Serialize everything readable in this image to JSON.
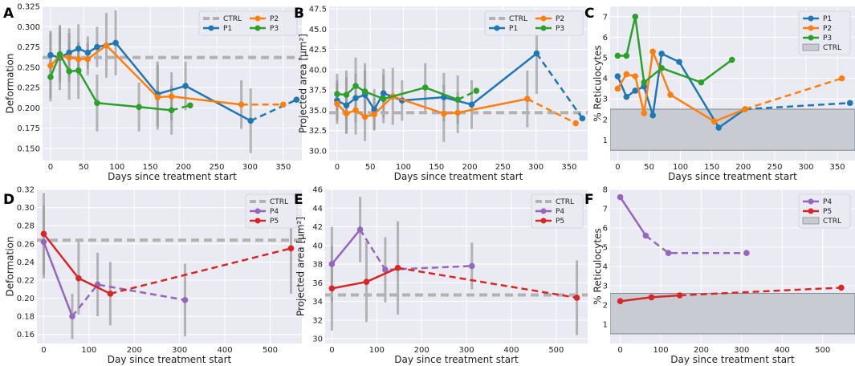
{
  "chart_data": [
    {
      "id": "A",
      "type": "line",
      "panel_label": "A",
      "xlabel": "Days since treatment start",
      "ylabel": "Deformation",
      "xlim": [
        -12,
        378
      ],
      "ylim": [
        0.135,
        0.325
      ],
      "xticks": [
        0,
        50,
        100,
        150,
        200,
        250,
        300,
        350
      ],
      "yticks": [
        0.15,
        0.175,
        0.2,
        0.225,
        0.25,
        0.275,
        0.3,
        0.325
      ],
      "ytick_labels": [
        "0.150",
        "0.175",
        "0.200",
        "0.225",
        "0.250",
        "0.275",
        "0.300",
        "0.325"
      ],
      "ctrl": 0.262,
      "legend": {
        "cols": 2,
        "items": [
          {
            "label": "CTRL",
            "kind": "ctrl"
          },
          {
            "label": "P2",
            "series": 1
          },
          {
            "label": "P1",
            "series": 0
          },
          {
            "label": "P3",
            "series": 2
          }
        ]
      },
      "series": [
        {
          "name": "P1",
          "color": "#1f77b4",
          "x": [
            0,
            14,
            28,
            42,
            56,
            70,
            98,
            161,
            203,
            301
          ],
          "y": [
            0.265,
            0.262,
            0.268,
            0.273,
            0.268,
            0.275,
            0.28,
            0.217,
            0.227,
            0.184
          ],
          "err": [
            0.03,
            0.04,
            0.03,
            0.03,
            0.02,
            0.025,
            0.04,
            0.04,
            0.03,
            0.04
          ],
          "dashed": {
            "x": [
              301,
              370
            ],
            "y": [
              0.184,
              0.21
            ]
          }
        },
        {
          "name": "P2",
          "color": "#ff7f0e",
          "x": [
            0,
            14,
            28,
            42,
            56,
            84,
            161,
            182,
            287
          ],
          "y": [
            0.252,
            0.264,
            0.262,
            0.26,
            0.26,
            0.277,
            0.213,
            0.214,
            0.204
          ],
          "err": [
            0.04,
            0.03,
            0.03,
            0.02,
            0.02,
            0.04,
            0.04,
            0.03,
            0.03
          ],
          "dashed": {
            "x": [
              287,
              350
            ],
            "y": [
              0.204,
              0.204
            ]
          }
        },
        {
          "name": "P3",
          "color": "#2ca02c",
          "x": [
            0,
            14,
            28,
            42,
            70,
            133,
            182
          ],
          "y": [
            0.238,
            0.266,
            0.245,
            0.246,
            0.206,
            0.201,
            0.197
          ],
          "err": [
            0.03,
            0.035,
            0.035,
            0.035,
            0.035,
            0.03,
            0.03
          ],
          "dashed": {
            "x": [
              182,
              210
            ],
            "y": [
              0.197,
              0.203
            ]
          }
        }
      ]
    },
    {
      "id": "B",
      "type": "line",
      "panel_label": "B",
      "xlabel": "Days since treatment start",
      "ylabel": "Projected area [μm²]",
      "xlim": [
        -12,
        378
      ],
      "ylim": [
        28.8,
        47.8
      ],
      "xticks": [
        0,
        50,
        100,
        150,
        200,
        250,
        300,
        350
      ],
      "yticks": [
        30,
        32.5,
        35,
        37.5,
        40,
        42.5,
        45,
        47.5
      ],
      "ytick_labels": [
        "30.0",
        "32.5",
        "35.0",
        "37.5",
        "40.0",
        "42.5",
        "45.0",
        "47.5"
      ],
      "ctrl": 34.7,
      "legend": {
        "cols": 2,
        "items": [
          {
            "label": "CTRL",
            "kind": "ctrl"
          },
          {
            "label": "P2",
            "series": 1
          },
          {
            "label": "P1",
            "series": 0
          },
          {
            "label": "P3",
            "series": 2
          }
        ]
      },
      "series": [
        {
          "name": "P1",
          "color": "#1f77b4",
          "x": [
            0,
            14,
            28,
            42,
            56,
            70,
            98,
            161,
            203,
            301
          ],
          "y": [
            36.2,
            35.6,
            36.5,
            36.9,
            35.1,
            37.1,
            36.2,
            36.6,
            35.7,
            42.0
          ],
          "err": [
            2.5,
            3.5,
            3.0,
            3.0,
            2.5,
            3.0,
            2.5,
            3.0,
            3.0,
            5.0
          ],
          "dashed": {
            "x": [
              301,
              370
            ],
            "y": [
              42.0,
              34.0
            ]
          }
        },
        {
          "name": "P2",
          "color": "#ff7f0e",
          "x": [
            0,
            14,
            28,
            42,
            56,
            84,
            161,
            182,
            287
          ],
          "y": [
            35.8,
            34.6,
            35.0,
            34.2,
            34.5,
            36.7,
            34.6,
            34.7,
            36.4
          ],
          "err": [
            2.5,
            2.5,
            3.0,
            3.0,
            2.0,
            3.5,
            3.5,
            2.5,
            3.5
          ],
          "dashed": {
            "x": [
              287,
              360
            ],
            "y": [
              36.4,
              33.4
            ]
          }
        },
        {
          "name": "P3",
          "color": "#2ca02c",
          "x": [
            0,
            14,
            28,
            42,
            70,
            133,
            182
          ],
          "y": [
            37.0,
            36.9,
            38.0,
            37.3,
            36.4,
            37.8,
            36.3
          ],
          "err": [
            2.5,
            3.0,
            3.5,
            3.5,
            3.0,
            3.0,
            3.0
          ],
          "dashed": {
            "x": [
              182,
              210
            ],
            "y": [
              36.3,
              37.4
            ]
          }
        }
      ]
    },
    {
      "id": "C",
      "type": "line",
      "panel_label": "C",
      "xlabel": "Days since treatment start",
      "ylabel": "% Reticulocytes",
      "xlim": [
        -12,
        378
      ],
      "ylim": [
        0.0,
        7.5
      ],
      "xticks": [
        0,
        50,
        100,
        150,
        200,
        250,
        300,
        350
      ],
      "yticks": [
        1,
        2,
        3,
        4,
        5,
        6,
        7
      ],
      "ytick_labels": [
        "1",
        "2",
        "3",
        "4",
        "5",
        "6",
        "7"
      ],
      "band": [
        0.5,
        2.5
      ],
      "legend": {
        "cols": 1,
        "items": [
          {
            "label": "P1",
            "series": 0
          },
          {
            "label": "P2",
            "series": 1
          },
          {
            "label": "P3",
            "series": 2
          },
          {
            "label": "CTRL",
            "kind": "band"
          }
        ]
      },
      "series": [
        {
          "name": "P1",
          "color": "#1f77b4",
          "x": [
            0,
            14,
            28,
            42,
            56,
            70,
            98,
            161,
            203
          ],
          "y": [
            4.1,
            3.1,
            3.4,
            3.6,
            2.2,
            5.2,
            4.8,
            1.6,
            2.5
          ],
          "dashed": {
            "x": [
              203,
              370
            ],
            "y": [
              2.5,
              2.8
            ]
          }
        },
        {
          "name": "P2",
          "color": "#ff7f0e",
          "x": [
            0,
            14,
            28,
            42,
            56,
            84,
            154,
            203
          ],
          "y": [
            3.5,
            4.2,
            4.1,
            2.3,
            5.3,
            3.2,
            1.9,
            2.5
          ],
          "dashed": {
            "x": [
              203,
              357
            ],
            "y": [
              2.5,
              4.0
            ]
          }
        },
        {
          "name": "P3",
          "color": "#2ca02c",
          "x": [
            0,
            14,
            28,
            42,
            70,
            133,
            182
          ],
          "y": [
            5.1,
            5.1,
            7.0,
            3.8,
            4.5,
            3.8,
            4.9
          ]
        }
      ]
    },
    {
      "id": "D",
      "type": "line",
      "panel_label": "D",
      "xlabel": "Day since treatment start",
      "ylabel": "Deformation",
      "xlim": [
        -15,
        570
      ],
      "ylim": [
        0.15,
        0.32
      ],
      "xticks": [
        0,
        100,
        200,
        300,
        400,
        500
      ],
      "yticks": [
        0.16,
        0.18,
        0.2,
        0.22,
        0.24,
        0.26,
        0.28,
        0.3,
        0.32
      ],
      "ytick_labels": [
        "0.16",
        "0.18",
        "0.20",
        "0.22",
        "0.24",
        "0.26",
        "0.28",
        "0.30",
        "0.32"
      ],
      "ctrl": 0.264,
      "legend": {
        "cols": 1,
        "items": [
          {
            "label": "CTRL",
            "kind": "ctrl"
          },
          {
            "label": "P4",
            "series": 0
          },
          {
            "label": "P5",
            "series": 1
          }
        ]
      },
      "series": [
        {
          "name": "P4",
          "color": "#9467bd",
          "x": [
            0,
            63
          ],
          "y": [
            0.262,
            0.18
          ],
          "err": [
            0.04,
            0.025
          ],
          "dashed": {
            "x": [
              63,
              119,
              312
            ],
            "y": [
              0.18,
              0.215,
              0.198
            ]
          },
          "dashed_err": [
            0.0,
            0.035,
            0.04
          ]
        },
        {
          "name": "P5",
          "color": "#d62728",
          "x": [
            0,
            77,
            147
          ],
          "y": [
            0.271,
            0.222,
            0.205
          ],
          "err": [
            0.045,
            0.04,
            0.035
          ],
          "dashed": {
            "x": [
              147,
              546
            ],
            "y": [
              0.205,
              0.255
            ]
          },
          "dashed_err": [
            0.0,
            0.05
          ]
        }
      ]
    },
    {
      "id": "E",
      "type": "line",
      "panel_label": "E",
      "xlabel": "Day since treatment start",
      "ylabel": "Projected area [μm²]",
      "xlim": [
        -15,
        570
      ],
      "ylim": [
        29.5,
        46.0
      ],
      "xticks": [
        0,
        100,
        200,
        300,
        400,
        500
      ],
      "yticks": [
        30,
        32,
        34,
        36,
        38,
        40,
        42,
        44,
        46
      ],
      "ytick_labels": [
        "30",
        "32",
        "34",
        "36",
        "38",
        "40",
        "42",
        "44",
        "46"
      ],
      "ctrl": 34.7,
      "legend": {
        "cols": 1,
        "items": [
          {
            "label": "CTRL",
            "kind": "ctrl"
          },
          {
            "label": "P4",
            "series": 0
          },
          {
            "label": "P5",
            "series": 1
          }
        ]
      },
      "series": [
        {
          "name": "P4",
          "color": "#9467bd",
          "x": [
            0,
            63
          ],
          "y": [
            38.0,
            41.7
          ],
          "err": [
            4.0,
            3.5
          ],
          "dashed": {
            "x": [
              63,
              119,
              312
            ],
            "y": [
              41.7,
              37.4,
              37.8
            ]
          },
          "dashed_err": [
            0.0,
            3.5,
            2.5
          ]
        },
        {
          "name": "P5",
          "color": "#d62728",
          "x": [
            0,
            77,
            147
          ],
          "y": [
            35.4,
            36.1,
            37.6
          ],
          "err": [
            4.5,
            4.3,
            5.0
          ],
          "dashed": {
            "x": [
              147,
              546
            ],
            "y": [
              37.6,
              34.4
            ]
          },
          "dashed_err": [
            0.0,
            4.0
          ]
        }
      ]
    },
    {
      "id": "F",
      "type": "line",
      "panel_label": "F",
      "xlabel": "Day since treatment start",
      "ylabel": "% Reticulocytes",
      "xlim": [
        -25,
        580
      ],
      "ylim": [
        0.0,
        8.0
      ],
      "xticks": [
        0,
        100,
        200,
        300,
        400,
        500
      ],
      "yticks": [
        1,
        2,
        3,
        4,
        5,
        6,
        7,
        8
      ],
      "ytick_labels": [
        "1",
        "2",
        "3",
        "4",
        "5",
        "6",
        "7",
        "8"
      ],
      "band": [
        0.5,
        2.6
      ],
      "legend": {
        "cols": 1,
        "items": [
          {
            "label": "P4",
            "series": 0
          },
          {
            "label": "P5",
            "series": 1
          },
          {
            "label": "CTRL",
            "kind": "band"
          }
        ]
      },
      "series": [
        {
          "name": "P4",
          "color": "#9467bd",
          "x": [
            0,
            63
          ],
          "y": [
            7.6,
            5.6
          ],
          "dashed": {
            "x": [
              63,
              119,
              312
            ],
            "y": [
              5.6,
              4.7,
              4.7
            ]
          }
        },
        {
          "name": "P5",
          "color": "#d62728",
          "x": [
            0,
            77,
            147
          ],
          "y": [
            2.2,
            2.4,
            2.5
          ],
          "dashed": {
            "x": [
              147,
              546
            ],
            "y": [
              2.5,
              2.9
            ]
          }
        }
      ]
    }
  ]
}
